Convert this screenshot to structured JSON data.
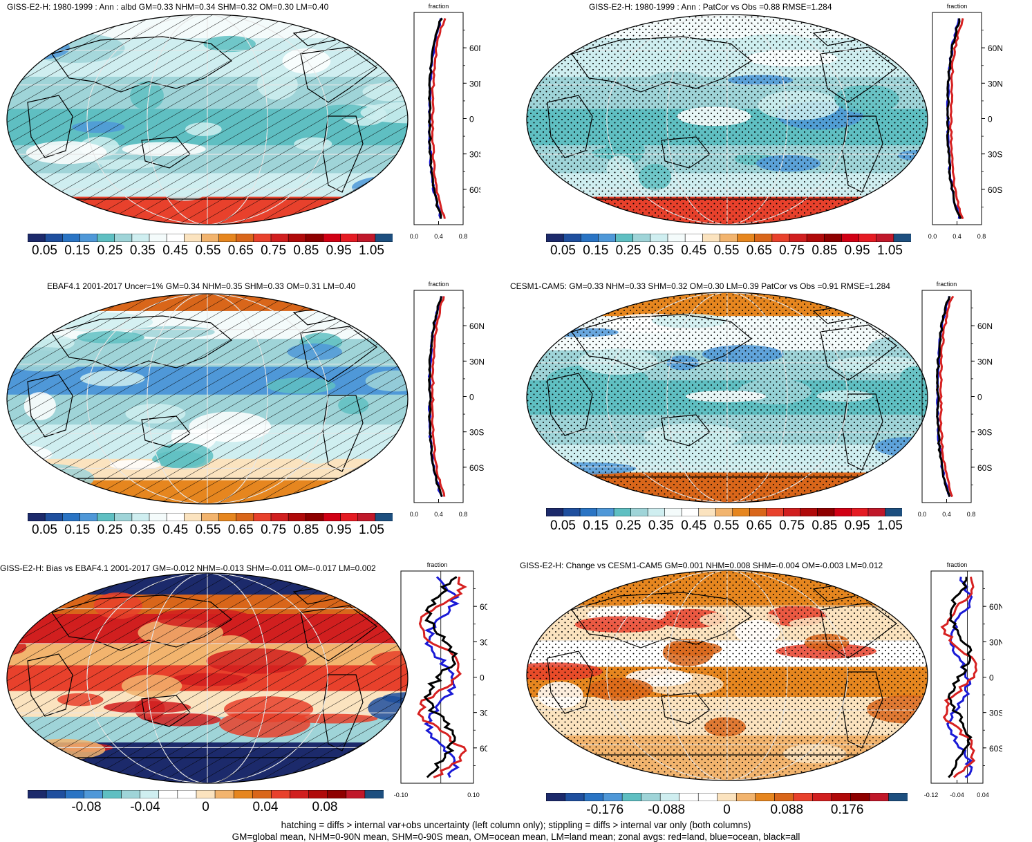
{
  "panels": [
    {
      "title": "GISS-E2-H: 1980-1999 : Ann : albd GM=0.33 NHM=0.34 SHM=0.32 OM=0.30 LM=0.40",
      "pattern": "hatch",
      "kind": "abs",
      "zonal_unit": "fraction",
      "zonal_x_ticks": [
        "0.0",
        "0.4",
        "0.8"
      ],
      "colorbar_labels": [
        "0.05",
        "0.15",
        "0.25",
        "0.35",
        "0.45",
        "0.55",
        "0.65",
        "0.75",
        "0.85",
        "0.95",
        "1.05"
      ]
    },
    {
      "title": "GISS-E2-H: 1980-1999 : Ann : PatCor vs Obs =0.88 RMSE=1.284",
      "pattern": "stipple",
      "kind": "abs",
      "zonal_unit": "fraction",
      "zonal_x_ticks": [
        "0.0",
        "0.4",
        "0.8"
      ],
      "colorbar_labels": [
        "0.05",
        "0.15",
        "0.25",
        "0.35",
        "0.45",
        "0.55",
        "0.65",
        "0.75",
        "0.85",
        "0.95",
        "1.05"
      ]
    },
    {
      "title": "EBAF4.1 2001-2017 Uncer=1% GM=0.34 NHM=0.35 SHM=0.33 OM=0.31 LM=0.40",
      "pattern": "hatch",
      "kind": "obs",
      "zonal_unit": "fraction",
      "zonal_x_ticks": [
        "0.0",
        "0.4",
        "0.8"
      ],
      "colorbar_labels": [
        "0.05",
        "0.15",
        "0.25",
        "0.35",
        "0.45",
        "0.55",
        "0.65",
        "0.75",
        "0.85",
        "0.95",
        "1.05"
      ]
    },
    {
      "title": "CESM1-CAM5: GM=0.33 NHM=0.33 SHM=0.32 OM=0.30 LM=0.39 PatCor vs Obs =0.91 RMSE=1.284",
      "pattern": "stipple",
      "kind": "obs2",
      "zonal_unit": "fraction",
      "zonal_x_ticks": [
        "0.0",
        "0.4",
        "0.8"
      ],
      "colorbar_labels": [
        "0.05",
        "0.15",
        "0.25",
        "0.35",
        "0.45",
        "0.55",
        "0.65",
        "0.75",
        "0.85",
        "0.95",
        "1.05"
      ]
    },
    {
      "title": "GISS-E2-H: Bias vs EBAF4.1 2001-2017 GM=-0.012 NHM=-0.013 SHM=-0.011 OM=-0.017 LM=0.002",
      "pattern": "hatch",
      "kind": "bias",
      "zonal_unit": "fraction",
      "zonal_x_ticks": [
        "-0.10",
        "0.10"
      ],
      "colorbar_labels": [
        "-0.08",
        "-0.04",
        "0",
        "0.04",
        "0.08"
      ]
    },
    {
      "title": "GISS-E2-H: Change vs CESM1-CAM5 GM=0.001 NHM=0.008 SHM=-0.004 OM=-0.003 LM=0.012",
      "pattern": "stipple",
      "kind": "change",
      "zonal_unit": "fraction",
      "zonal_x_ticks": [
        "-0.12",
        "-0.04",
        "0.04"
      ],
      "colorbar_labels": [
        "-0.176",
        "-0.088",
        "0",
        "0.088",
        "0.176"
      ]
    }
  ],
  "lat_labels": [
    "60N",
    "30N",
    "0",
    "30S",
    "60S"
  ],
  "footer": {
    "line1": "hatching = diffs > internal var+obs uncertainty (left column only); stippling = diffs > internal var only (both columns)",
    "line2": "GM=global mean, NHM=0-90N mean, SHM=0-90S mean, OM=ocean mean, LM=land mean; zonal avgs: red=land, blue=ocean, black=all"
  },
  "colors": {
    "abs_scale": [
      "#1c2a6b",
      "#1f4f9e",
      "#2a74c4",
      "#4f98d8",
      "#5fbfc2",
      "#9fd4d8",
      "#cfeef0",
      "#f4fbfb",
      "#ffffff",
      "#fbe3bf",
      "#f2b46e",
      "#e6861f",
      "#d9661a",
      "#e8412c",
      "#d11f1f",
      "#b00a0a",
      "#8e0000",
      "#d10014",
      "#e51b23",
      "#c0182a",
      "#1d4f7f"
    ],
    "diff_scale": [
      "#1c2a6b",
      "#1f4f9e",
      "#2a74c4",
      "#4f98d8",
      "#5fbfc2",
      "#9fd4d8",
      "#cfeef0",
      "#ffffff",
      "#ffffff",
      "#fbe3bf",
      "#f2b46e",
      "#e6861f",
      "#d9661a",
      "#e8412c",
      "#d11f1f",
      "#b00a0a",
      "#8e0000",
      "#c0182a",
      "#1d4f7f"
    ],
    "land": "#d62020",
    "ocean": "#1a1ad6",
    "all": "#000000"
  }
}
